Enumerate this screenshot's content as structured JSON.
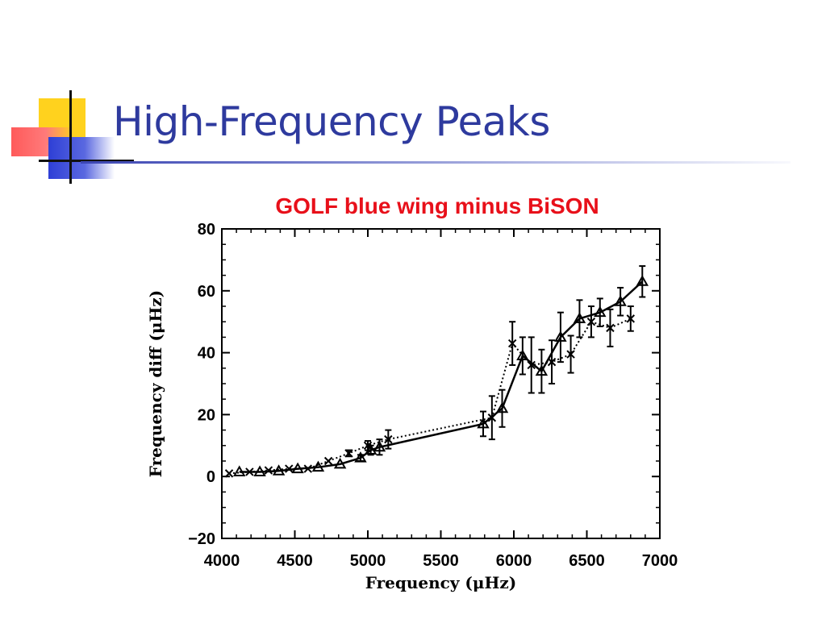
{
  "slide": {
    "title": "High-Frequency Peaks"
  },
  "chart_data": {
    "type": "line",
    "title": "GOLF blue wing minus BiSON",
    "xlabel": "Frequency (μHz)",
    "ylabel": "Frequency diff (μHz)",
    "xlim": [
      4000,
      7000
    ],
    "ylim": [
      -20,
      80
    ],
    "x_ticks": [
      "4000",
      "4500",
      "5000",
      "5500",
      "6000",
      "6500",
      "7000"
    ],
    "y_ticks": [
      "−20",
      "0",
      "20",
      "40",
      "60",
      "80"
    ],
    "grid": false,
    "colors": {
      "title": "#e8101a",
      "slide_title": "#2e3a9e",
      "series": "#000000"
    },
    "series": [
      {
        "marker": "triangle",
        "line": "solid",
        "points": [
          {
            "x": 4120,
            "y": 1.5,
            "err": 0
          },
          {
            "x": 4260,
            "y": 1.5,
            "err": 0
          },
          {
            "x": 4390,
            "y": 1.8,
            "err": 0
          },
          {
            "x": 4520,
            "y": 2.5,
            "err": 0
          },
          {
            "x": 4660,
            "y": 3.0,
            "err": 0
          },
          {
            "x": 4810,
            "y": 4.0,
            "err": 0
          },
          {
            "x": 4950,
            "y": 6.0,
            "err": 1.0
          },
          {
            "x": 5020,
            "y": 8.5,
            "err": 1.5
          },
          {
            "x": 5080,
            "y": 9.5,
            "err": 2.5
          },
          {
            "x": 5790,
            "y": 17.0,
            "err": 4.0
          },
          {
            "x": 5920,
            "y": 22.0,
            "err": 6.0
          },
          {
            "x": 6060,
            "y": 39.0,
            "err": 6.0
          },
          {
            "x": 6190,
            "y": 34.0,
            "err": 7.0
          },
          {
            "x": 6320,
            "y": 45.0,
            "err": 8.0
          },
          {
            "x": 6450,
            "y": 51.0,
            "err": 6.0
          },
          {
            "x": 6590,
            "y": 53.0,
            "err": 4.5
          },
          {
            "x": 6730,
            "y": 56.5,
            "err": 4.5
          },
          {
            "x": 6880,
            "y": 63.0,
            "err": 5.0
          }
        ]
      },
      {
        "marker": "x",
        "line": "dotted",
        "points": [
          {
            "x": 4050,
            "y": 1.0,
            "err": 0
          },
          {
            "x": 4190,
            "y": 1.5,
            "err": 0
          },
          {
            "x": 4320,
            "y": 2.0,
            "err": 0
          },
          {
            "x": 4460,
            "y": 2.5,
            "err": 0
          },
          {
            "x": 4590,
            "y": 2.5,
            "err": 0
          },
          {
            "x": 4730,
            "y": 5.0,
            "err": 0
          },
          {
            "x": 4870,
            "y": 7.5,
            "err": 1.0
          },
          {
            "x": 5000,
            "y": 10.0,
            "err": 1.5
          },
          {
            "x": 5140,
            "y": 12.0,
            "err": 3.0
          },
          {
            "x": 5850,
            "y": 19.0,
            "err": 7.0
          },
          {
            "x": 5990,
            "y": 43.0,
            "err": 7.0
          },
          {
            "x": 6120,
            "y": 36.0,
            "err": 9.0
          },
          {
            "x": 6260,
            "y": 37.0,
            "err": 7.0
          },
          {
            "x": 6390,
            "y": 39.5,
            "err": 6.0
          },
          {
            "x": 6530,
            "y": 50.0,
            "err": 5.0
          },
          {
            "x": 6660,
            "y": 48.0,
            "err": 6.0
          },
          {
            "x": 6800,
            "y": 51.0,
            "err": 4.0
          }
        ]
      }
    ]
  }
}
